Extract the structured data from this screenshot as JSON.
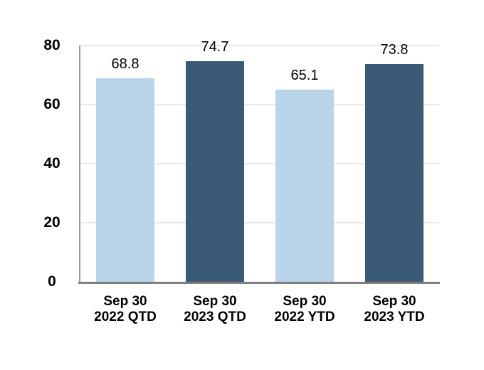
{
  "chart_data": {
    "type": "bar",
    "title": "",
    "categories": [
      {
        "line1": "Sep 30",
        "line2": "2022 QTD"
      },
      {
        "line1": "Sep 30",
        "line2": "2023 QTD"
      },
      {
        "line1": "Sep 30",
        "line2": "2022 YTD"
      },
      {
        "line1": "Sep 30",
        "line2": "2023 YTD"
      }
    ],
    "values": [
      68.8,
      74.7,
      65.1,
      73.8
    ],
    "value_labels": [
      "68.8",
      "74.7",
      "65.1",
      "73.8"
    ],
    "bar_colors": [
      "#BAD5EA",
      "#3B5A78",
      "#BAD5EA",
      "#3B5A78"
    ],
    "y_ticks": [
      0,
      20,
      40,
      60,
      80
    ],
    "y_tick_labels": [
      "0",
      "20",
      "40",
      "60",
      "80"
    ],
    "ylim": [
      0,
      80
    ],
    "grid": true,
    "legend_position": "none",
    "xlabel": "",
    "ylabel": ""
  },
  "style": {
    "background": "#FFFFFF",
    "gridline_color": "#E8E8E8",
    "y_axis_line_color": "#969696",
    "x_axis_line_color": "#7F7F7F",
    "text_color": "#000000"
  }
}
